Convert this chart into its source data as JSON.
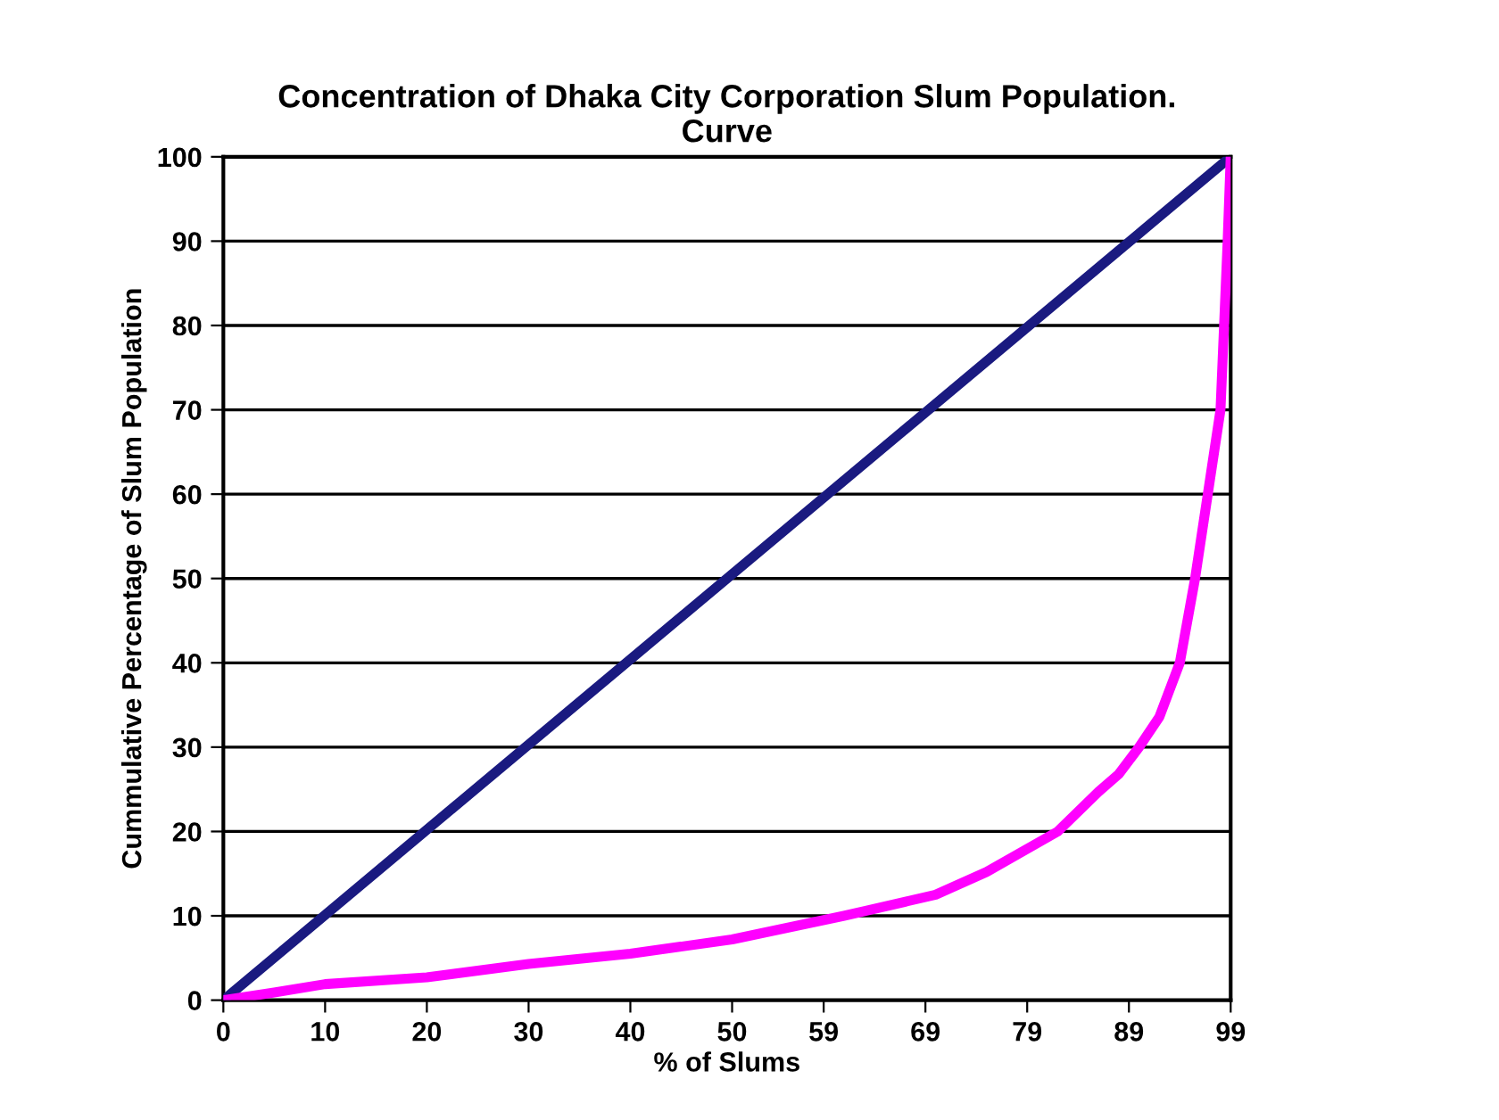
{
  "chart_data": {
    "type": "line",
    "title": "Concentration of Dhaka City Corporation Slum Population.\nCurve",
    "xlabel": "% of Slums",
    "ylabel": "Cummulative Percentage of Slum Population",
    "xlim": [
      0,
      99
    ],
    "ylim": [
      0,
      100
    ],
    "xticks": [
      0,
      10,
      20,
      30,
      40,
      50,
      59,
      69,
      79,
      89,
      99
    ],
    "yticks": [
      0,
      10,
      20,
      30,
      40,
      50,
      60,
      70,
      80,
      90,
      100
    ],
    "grid": "y",
    "legend": false,
    "marker": "none",
    "line_style": "solid",
    "series": [
      {
        "color": "#1a1a80",
        "x": [
          0,
          99
        ],
        "values": [
          0,
          100
        ]
      },
      {
        "color": "#ff00ff",
        "x": [
          0,
          5,
          10,
          20,
          30,
          40,
          50,
          61,
          70,
          75,
          82,
          86,
          88,
          90,
          92,
          94,
          95.5,
          98,
          98.7,
          99
        ],
        "values": [
          0,
          0.9,
          1.9,
          2.7,
          4.3,
          5.5,
          7.2,
          10,
          12.5,
          15.2,
          20,
          24.7,
          26.8,
          30,
          33.6,
          40,
          50,
          70,
          90,
          100
        ]
      }
    ]
  }
}
